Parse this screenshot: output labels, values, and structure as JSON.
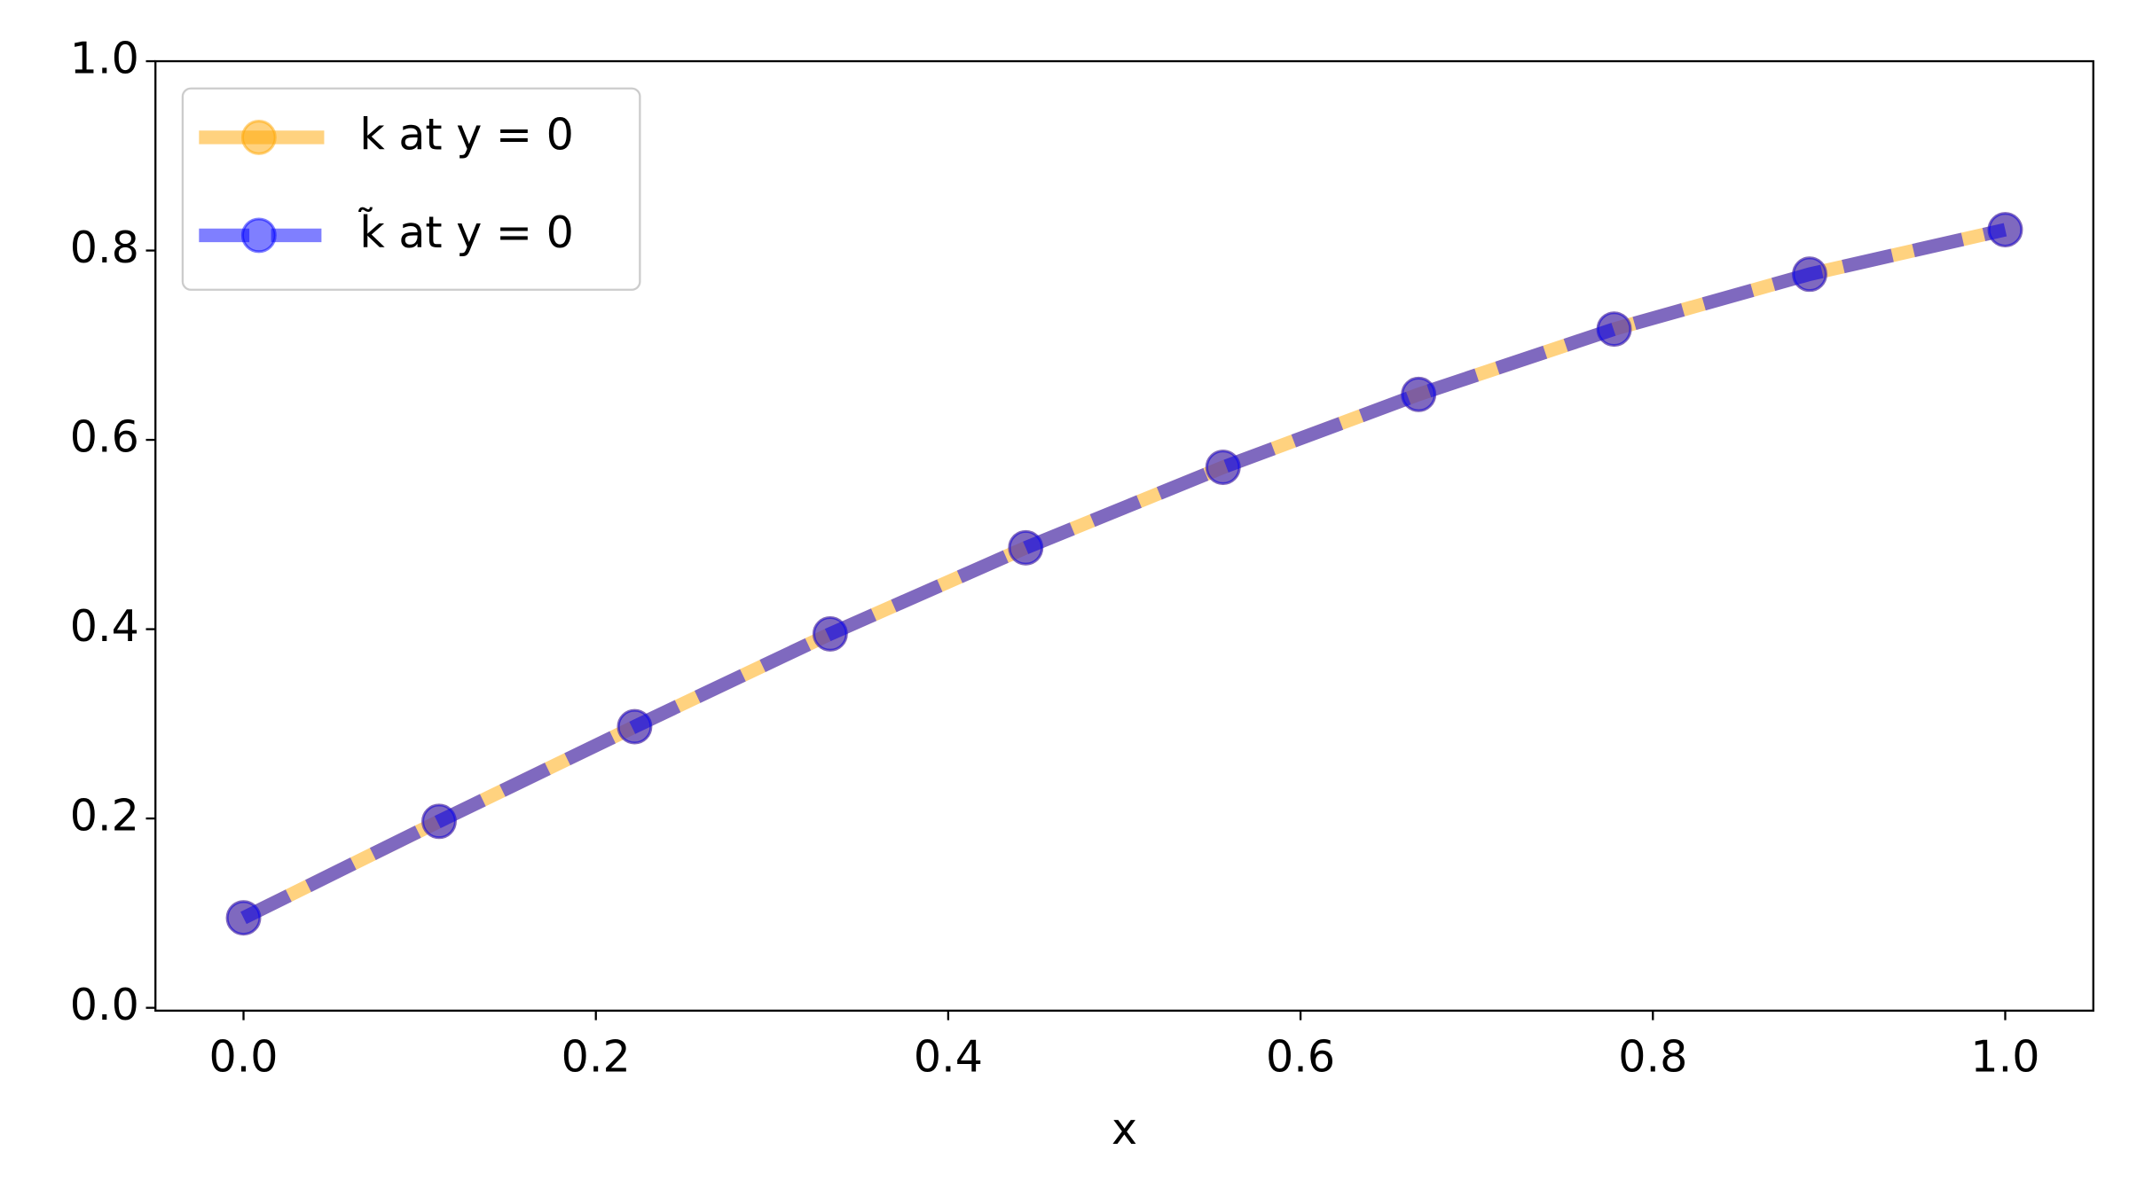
{
  "chart_data": {
    "type": "line",
    "x": [
      0,
      0.111,
      0.222,
      0.333,
      0.444,
      0.556,
      0.667,
      0.778,
      0.889,
      1
    ],
    "series": [
      {
        "name": "k at y = 0",
        "color": "#ffa500",
        "dash": "solid",
        "values": [
          0.095,
          0.197,
          0.297,
          0.395,
          0.486,
          0.571,
          0.648,
          0.717,
          0.775,
          0.822
        ]
      },
      {
        "name": "k̃ at y = 0",
        "color": "#0000ff",
        "dash": "dashed",
        "values": [
          0.095,
          0.197,
          0.297,
          0.395,
          0.486,
          0.571,
          0.648,
          0.717,
          0.775,
          0.822
        ]
      }
    ],
    "xlabel": "x",
    "xlim": [
      -0.05,
      1.05
    ],
    "ylim": [
      -0.003,
      1.0
    ],
    "xticks": [
      {
        "value": 0,
        "label": "0.0"
      },
      {
        "value": 0.2,
        "label": "0.2"
      },
      {
        "value": 0.4,
        "label": "0.4"
      },
      {
        "value": 0.6,
        "label": "0.6"
      },
      {
        "value": 0.8,
        "label": "0.8"
      },
      {
        "value": 1,
        "label": "1.0"
      }
    ],
    "yticks": [
      {
        "value": 0,
        "label": "0.0"
      },
      {
        "value": 0.2,
        "label": "0.2"
      },
      {
        "value": 0.4,
        "label": "0.4"
      },
      {
        "value": 0.6,
        "label": "0.6"
      },
      {
        "value": 0.8,
        "label": "0.8"
      },
      {
        "value": 1,
        "label": "1.0"
      }
    ],
    "legend": "upper left",
    "grid": false
  }
}
